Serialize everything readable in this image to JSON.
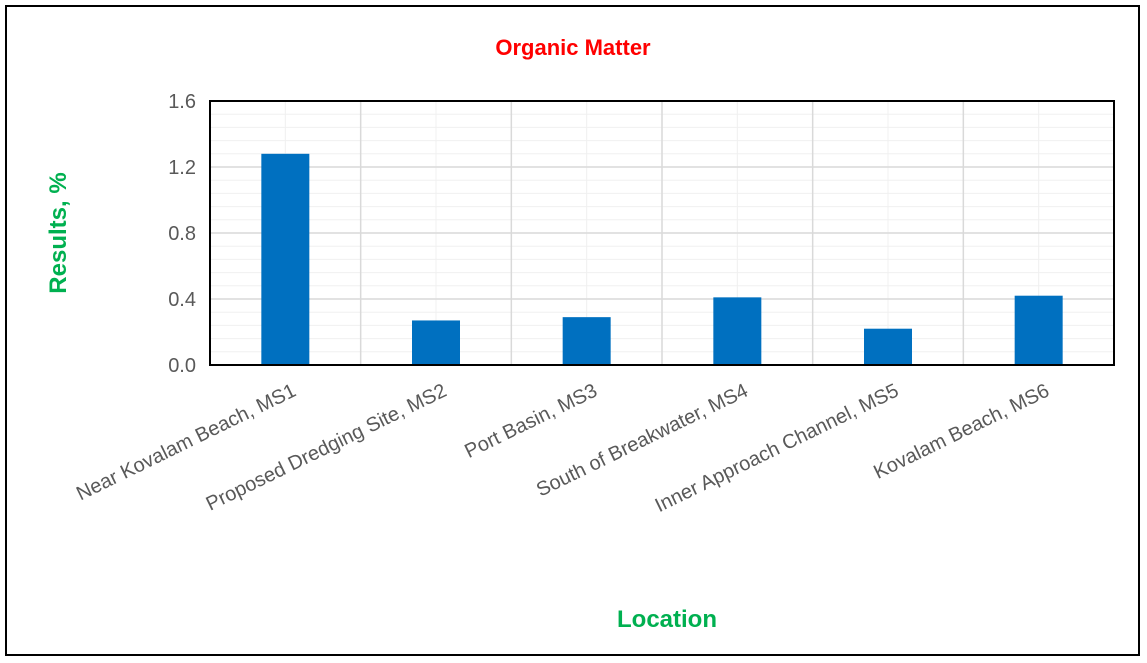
{
  "chart_data": {
    "type": "bar",
    "title": "Organic Matter",
    "xlabel": "Location",
    "ylabel": "Results, %",
    "categories": [
      "Near Kovalam Beach, MS1",
      "Proposed Dredging Site, MS2",
      "Port Basin, MS3",
      "South of Breakwater, MS4",
      "Inner Approach Channel, MS5",
      "Kovalam Beach, MS6"
    ],
    "values": [
      1.28,
      0.27,
      0.29,
      0.41,
      0.22,
      0.42
    ],
    "ylim": [
      0,
      1.6
    ],
    "yticks": [
      "0.0",
      "0.4",
      "0.8",
      "1.2",
      "1.6"
    ],
    "grid": true,
    "legend": "none",
    "colors": {
      "bar": "#0070c0",
      "title": "#ff0000",
      "axis_title": "#00b050",
      "major_grid": "#d9d9d9",
      "minor_grid": "#f0f0f0",
      "tick_label": "#595959"
    }
  }
}
